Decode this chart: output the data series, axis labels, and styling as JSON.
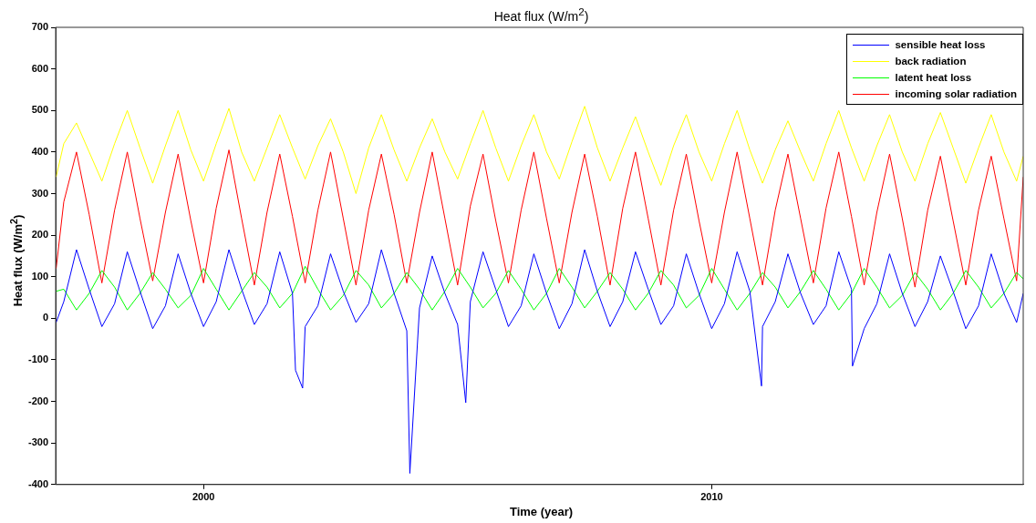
{
  "chart_data": {
    "type": "line",
    "title": "Heat flux (W/m$^{2}$)",
    "xlabel": "Time (year)",
    "ylabel": "Heat flux (W/m$^{2}$)",
    "x": [
      1997.1,
      1997.25,
      1997.5,
      1997.75,
      1998,
      1998.25,
      1998.5,
      1998.75,
      1999,
      1999.25,
      1999.5,
      1999.75,
      2000,
      2000.25,
      2000.5,
      2000.75,
      2001,
      2001.25,
      2001.5,
      2001.75,
      2002,
      2002.25,
      2002.5,
      2002.75,
      2003,
      2003.25,
      2003.5,
      2003.75,
      2004,
      2004.25,
      2004.5,
      2004.75,
      2005,
      2005.25,
      2005.5,
      2005.75,
      2006,
      2006.25,
      2006.5,
      2006.75,
      2007,
      2007.25,
      2007.5,
      2007.75,
      2008,
      2008.25,
      2008.5,
      2008.75,
      2009,
      2009.25,
      2009.5,
      2009.75,
      2010,
      2010.25,
      2010.5,
      2010.75,
      2011,
      2011.25,
      2011.5,
      2011.75,
      2012,
      2012.25,
      2012.5,
      2012.75,
      2013,
      2013.25,
      2013.5,
      2013.75,
      2014,
      2014.25,
      2014.5,
      2014.75,
      2015,
      2015.25,
      2015.5,
      2015.75,
      2016,
      2016.13
    ],
    "series": [
      {
        "name": "sensible heat loss",
        "color": "#0000ff",
        "x": [
          1997.1,
          1997.25,
          1997.5,
          1997.75,
          1998,
          1998.25,
          1998.5,
          1998.75,
          1999,
          1999.25,
          1999.5,
          1999.75,
          2000,
          2000.25,
          2000.5,
          2000.75,
          2001,
          2001.25,
          2001.5,
          2001.75,
          2001.81,
          2001.95,
          2002,
          2002.25,
          2002.5,
          2002.75,
          2003,
          2003.25,
          2003.5,
          2003.75,
          2004,
          2004.06,
          2004.25,
          2004.5,
          2004.75,
          2005,
          2005.16,
          2005.25,
          2005.5,
          2005.75,
          2006,
          2006.25,
          2006.5,
          2006.75,
          2007,
          2007.25,
          2007.5,
          2007.75,
          2008,
          2008.25,
          2008.5,
          2008.75,
          2009,
          2009.25,
          2009.5,
          2009.75,
          2010,
          2010.25,
          2010.5,
          2010.75,
          2010.98,
          2011,
          2011.25,
          2011.5,
          2011.75,
          2012,
          2012.25,
          2012.5,
          2012.75,
          2012.77,
          2013,
          2013.25,
          2013.5,
          2013.75,
          2014,
          2014.25,
          2014.5,
          2014.75,
          2015,
          2015.25,
          2015.5,
          2015.75,
          2016,
          2016.13
        ],
        "values": [
          -10,
          40,
          165,
          70,
          -20,
          35,
          160,
          65,
          -25,
          30,
          155,
          60,
          -20,
          40,
          165,
          70,
          -15,
          35,
          160,
          60,
          -125,
          -168,
          -20,
          30,
          155,
          65,
          -10,
          35,
          165,
          60,
          -30,
          -373,
          25,
          150,
          60,
          -15,
          -203,
          40,
          160,
          70,
          -20,
          30,
          155,
          60,
          -25,
          35,
          165,
          65,
          -20,
          40,
          160,
          70,
          -15,
          30,
          155,
          60,
          -25,
          35,
          160,
          65,
          -163,
          -20,
          40,
          155,
          60,
          -15,
          30,
          160,
          70,
          -115,
          -25,
          35,
          155,
          60,
          -20,
          40,
          150,
          65,
          -25,
          30,
          155,
          60,
          -10,
          60
        ]
      },
      {
        "name": "back radiation",
        "color": "#ffff00",
        "values": [
          340,
          420,
          470,
          400,
          330,
          420,
          500,
          410,
          325,
          415,
          500,
          405,
          330,
          420,
          505,
          400,
          330,
          410,
          490,
          410,
          335,
          415,
          480,
          400,
          300,
          410,
          490,
          405,
          330,
          410,
          480,
          400,
          335,
          420,
          500,
          410,
          330,
          415,
          490,
          400,
          335,
          425,
          510,
          410,
          330,
          410,
          485,
          400,
          320,
          415,
          490,
          400,
          330,
          420,
          500,
          405,
          325,
          405,
          475,
          400,
          330,
          420,
          500,
          410,
          330,
          415,
          490,
          400,
          330,
          420,
          495,
          410,
          325,
          410,
          490,
          400,
          330,
          390
        ]
      },
      {
        "name": "latent heat loss",
        "color": "#00ff00",
        "values": [
          65,
          70,
          20,
          60,
          115,
          75,
          20,
          60,
          110,
          70,
          25,
          55,
          120,
          70,
          20,
          65,
          110,
          75,
          25,
          60,
          125,
          70,
          20,
          55,
          115,
          80,
          25,
          60,
          110,
          70,
          20,
          65,
          120,
          75,
          25,
          60,
          115,
          70,
          20,
          60,
          120,
          75,
          25,
          65,
          110,
          70,
          20,
          60,
          115,
          80,
          25,
          55,
          120,
          70,
          20,
          60,
          110,
          75,
          25,
          65,
          115,
          70,
          20,
          60,
          120,
          75,
          25,
          55,
          110,
          70,
          20,
          60,
          115,
          75,
          25,
          60,
          110,
          95
        ]
      },
      {
        "name": "incoming solar radiation",
        "color": "#ff0000",
        "values": [
          120,
          280,
          400,
          250,
          85,
          260,
          400,
          240,
          90,
          255,
          395,
          235,
          85,
          265,
          405,
          240,
          80,
          255,
          395,
          245,
          85,
          260,
          400,
          240,
          80,
          260,
          395,
          250,
          85,
          255,
          400,
          240,
          80,
          270,
          395,
          235,
          85,
          260,
          400,
          240,
          85,
          255,
          395,
          245,
          80,
          265,
          400,
          240,
          80,
          260,
          395,
          235,
          85,
          255,
          400,
          240,
          80,
          260,
          395,
          240,
          85,
          265,
          400,
          245,
          80,
          255,
          395,
          240,
          75,
          260,
          390,
          235,
          80,
          260,
          390,
          240,
          90,
          340
        ]
      }
    ],
    "xlim": [
      1997.09,
      2016.13
    ],
    "xticks": [
      2000,
      2010
    ],
    "ylim": [
      -400,
      700
    ],
    "yticks": [
      -400,
      -300,
      -200,
      -100,
      0,
      100,
      200,
      300,
      400,
      500,
      600,
      700
    ],
    "grid": false,
    "legend": "top right",
    "marker": "none",
    "line_style": "solid"
  }
}
